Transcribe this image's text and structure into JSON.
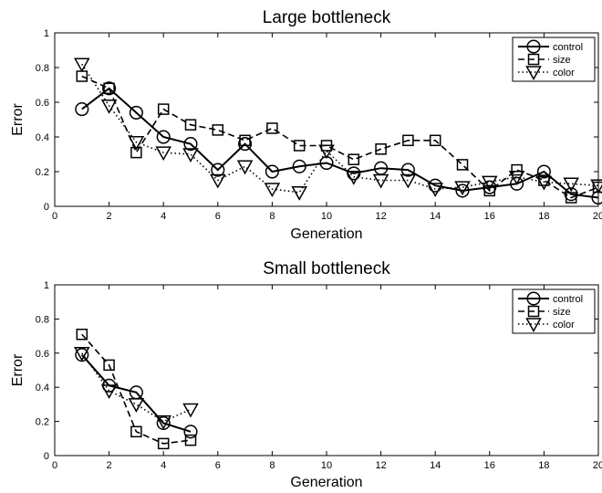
{
  "chart_data": [
    {
      "type": "line",
      "title": "Large bottleneck",
      "xlabel": "Generation",
      "ylabel": "Error",
      "xlim": [
        0,
        20
      ],
      "ylim": [
        0,
        1
      ],
      "xticks": [
        0,
        2,
        4,
        6,
        8,
        10,
        12,
        14,
        16,
        18,
        20
      ],
      "xtick_labels": [
        "0",
        "2",
        "4",
        "6",
        "8",
        "10",
        "12",
        "14",
        "16",
        "18",
        "20"
      ],
      "yticks": [
        0,
        0.2,
        0.4,
        0.6,
        0.8,
        1
      ],
      "ytick_labels": [
        "0",
        "0.2",
        "0.4",
        "0.6",
        "0.8",
        "1"
      ],
      "legend_position": "top-right",
      "series": [
        {
          "name": "control",
          "line": "solid",
          "marker": "circle",
          "x": [
            1,
            2,
            3,
            4,
            5,
            6,
            7,
            8,
            9,
            10,
            11,
            12,
            13,
            14,
            15,
            16,
            17,
            18,
            19,
            20
          ],
          "y": [
            0.56,
            0.68,
            0.54,
            0.4,
            0.36,
            0.21,
            0.36,
            0.2,
            0.23,
            0.25,
            0.19,
            0.22,
            0.21,
            0.12,
            0.09,
            0.11,
            0.13,
            0.2,
            0.07,
            0.05
          ]
        },
        {
          "name": "size",
          "line": "dashed",
          "marker": "square",
          "x": [
            1,
            2,
            3,
            4,
            5,
            6,
            7,
            8,
            9,
            10,
            11,
            12,
            13,
            14,
            15,
            16,
            17,
            18,
            19,
            20
          ],
          "y": [
            0.75,
            0.68,
            0.31,
            0.56,
            0.47,
            0.44,
            0.38,
            0.45,
            0.35,
            0.35,
            0.27,
            0.33,
            0.38,
            0.38,
            0.24,
            0.09,
            0.21,
            0.15,
            0.05,
            0.11
          ]
        },
        {
          "name": "color",
          "line": "dotted",
          "marker": "triangle-down",
          "x": [
            1,
            2,
            3,
            4,
            5,
            6,
            7,
            8,
            9,
            10,
            11,
            12,
            13,
            14,
            15,
            16,
            17,
            18,
            19,
            20
          ],
          "y": [
            0.82,
            0.58,
            0.37,
            0.31,
            0.3,
            0.15,
            0.23,
            0.1,
            0.08,
            0.32,
            0.17,
            0.15,
            0.15,
            0.1,
            0.11,
            0.14,
            0.17,
            0.14,
            0.13,
            0.12
          ]
        }
      ]
    },
    {
      "type": "line",
      "title": "Small bottleneck",
      "xlabel": "Generation",
      "ylabel": "Error",
      "xlim": [
        0,
        20
      ],
      "ylim": [
        0,
        1
      ],
      "xticks": [
        0,
        2,
        4,
        6,
        8,
        10,
        12,
        14,
        16,
        18,
        20
      ],
      "xtick_labels": [
        "0",
        "2",
        "4",
        "6",
        "8",
        "10",
        "12",
        "14",
        "16",
        "18",
        "20"
      ],
      "yticks": [
        0,
        0.2,
        0.4,
        0.6,
        0.8,
        1
      ],
      "ytick_labels": [
        "0",
        "0.2",
        "0.4",
        "0.6",
        "0.8",
        "1"
      ],
      "legend_position": "top-right",
      "series": [
        {
          "name": "control",
          "line": "solid",
          "marker": "circle",
          "x": [
            1,
            2,
            3,
            4,
            5
          ],
          "y": [
            0.59,
            0.41,
            0.37,
            0.19,
            0.14
          ]
        },
        {
          "name": "size",
          "line": "dashed",
          "marker": "square",
          "x": [
            1,
            2,
            3,
            4,
            5
          ],
          "y": [
            0.71,
            0.53,
            0.14,
            0.07,
            0.09
          ]
        },
        {
          "name": "color",
          "line": "dotted",
          "marker": "triangle-down",
          "x": [
            1,
            2,
            3,
            4,
            5
          ],
          "y": [
            0.6,
            0.38,
            0.3,
            0.2,
            0.27
          ]
        }
      ]
    }
  ]
}
